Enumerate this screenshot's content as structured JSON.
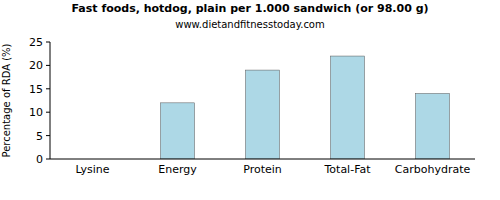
{
  "chart_data": {
    "type": "bar",
    "title": "Fast foods, hotdog, plain per 1.000 sandwich (or 98.00 g)",
    "subtitle": "www.dietandfitnesstoday.com",
    "y_label": "Percentage of RDA (%)",
    "categories": [
      "Lysine",
      "Energy",
      "Protein",
      "Total-Fat",
      "Carbohydrate"
    ],
    "values": [
      0,
      12,
      19,
      22,
      14
    ],
    "color": "#add8e6",
    "ylim": [
      0,
      25
    ],
    "yticks": [
      0,
      5,
      10,
      15,
      20,
      25
    ],
    "grid": false
  }
}
